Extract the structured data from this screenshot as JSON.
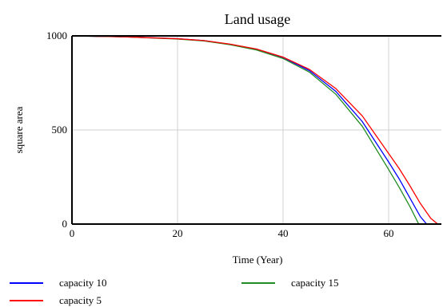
{
  "chart_data": {
    "type": "line",
    "title": "Land usage",
    "xlabel": "Time (Year)",
    "ylabel": "square area",
    "xlim": [
      0,
      70
    ],
    "ylim": [
      0,
      1000
    ],
    "x_ticks": [
      0,
      20,
      40,
      60
    ],
    "y_ticks": [
      0,
      500,
      1000
    ],
    "grid": true,
    "legend_position": "bottom",
    "series": [
      {
        "name": "capacity 10",
        "color": "#0000ff",
        "points": [
          [
            0,
            1000
          ],
          [
            10,
            995
          ],
          [
            20,
            985
          ],
          [
            25,
            975
          ],
          [
            30,
            955
          ],
          [
            35,
            928
          ],
          [
            40,
            885
          ],
          [
            45,
            815
          ],
          [
            50,
            705
          ],
          [
            55,
            545
          ],
          [
            60,
            330
          ],
          [
            62,
            240
          ],
          [
            64,
            140
          ],
          [
            66,
            40
          ],
          [
            67.2,
            0
          ]
        ]
      },
      {
        "name": "capacity 15",
        "color": "#228b22",
        "points": [
          [
            0,
            1000
          ],
          [
            10,
            995
          ],
          [
            20,
            983
          ],
          [
            25,
            973
          ],
          [
            30,
            953
          ],
          [
            35,
            925
          ],
          [
            40,
            880
          ],
          [
            45,
            807
          ],
          [
            50,
            690
          ],
          [
            55,
            520
          ],
          [
            60,
            290
          ],
          [
            62,
            195
          ],
          [
            64,
            95
          ],
          [
            65.7,
            0
          ]
        ]
      },
      {
        "name": "capacity 5",
        "color": "#ff0000",
        "points": [
          [
            0,
            1000
          ],
          [
            10,
            995
          ],
          [
            20,
            985
          ],
          [
            25,
            975
          ],
          [
            30,
            956
          ],
          [
            35,
            930
          ],
          [
            40,
            887
          ],
          [
            45,
            822
          ],
          [
            50,
            720
          ],
          [
            55,
            575
          ],
          [
            60,
            375
          ],
          [
            62,
            295
          ],
          [
            64,
            205
          ],
          [
            66,
            110
          ],
          [
            68,
            30
          ],
          [
            69.3,
            0
          ]
        ]
      }
    ]
  }
}
